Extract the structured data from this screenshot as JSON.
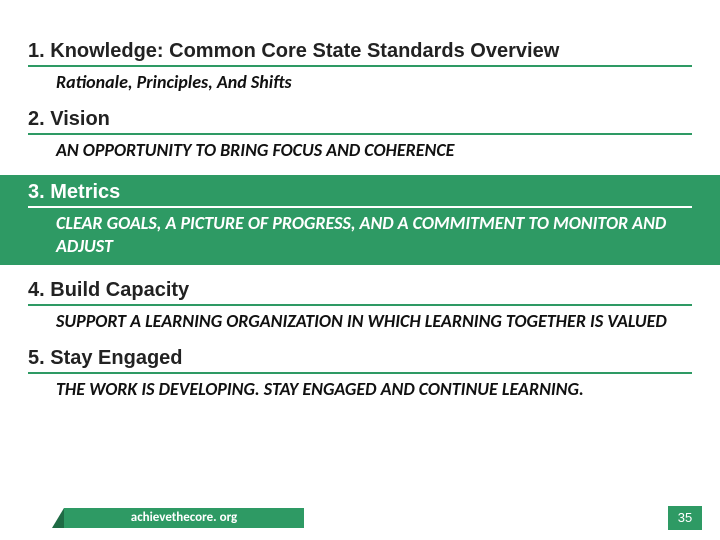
{
  "colors": {
    "accent": "#2e9a64",
    "accent_dark": "#1f6b45",
    "text": "#111111",
    "white": "#ffffff",
    "background": "#ffffff"
  },
  "typography": {
    "heading_font": "Arial",
    "heading_size_pt": 15,
    "heading_weight": "700",
    "sub_font": "Calibri",
    "sub_size_pt": 13,
    "sub_weight": "700",
    "sub_style": "italic"
  },
  "sections": [
    {
      "number": "1.",
      "title": "Knowledge: Common Core State Standards Overview",
      "subtitle": "Rationale, Principles, And Shifts",
      "uppercase": false,
      "highlighted": false
    },
    {
      "number": "2.",
      "title": "Vision",
      "subtitle": "AN OPPORTUNITY TO BRING FOCUS AND COHERENCE",
      "uppercase": true,
      "highlighted": false
    },
    {
      "number": "3.",
      "title": "Metrics",
      "subtitle": "CLEAR GOALS, A PICTURE OF PROGRESS, AND A COMMITMENT TO MONITOR AND ADJUST",
      "uppercase": true,
      "highlighted": true
    },
    {
      "number": "4.",
      "title": "Build Capacity",
      "subtitle": "SUPPORT A LEARNING ORGANIZATION IN WHICH LEARNING TOGETHER IS VALUED",
      "uppercase": true,
      "highlighted": false
    },
    {
      "number": "5.",
      "title": "Stay Engaged",
      "subtitle": "THE WORK IS DEVELOPING. STAY ENGAGED AND CONTINUE LEARNING.",
      "uppercase": true,
      "highlighted": false
    }
  ],
  "footer": {
    "site": "achievethecore. org",
    "page_number": "35"
  }
}
